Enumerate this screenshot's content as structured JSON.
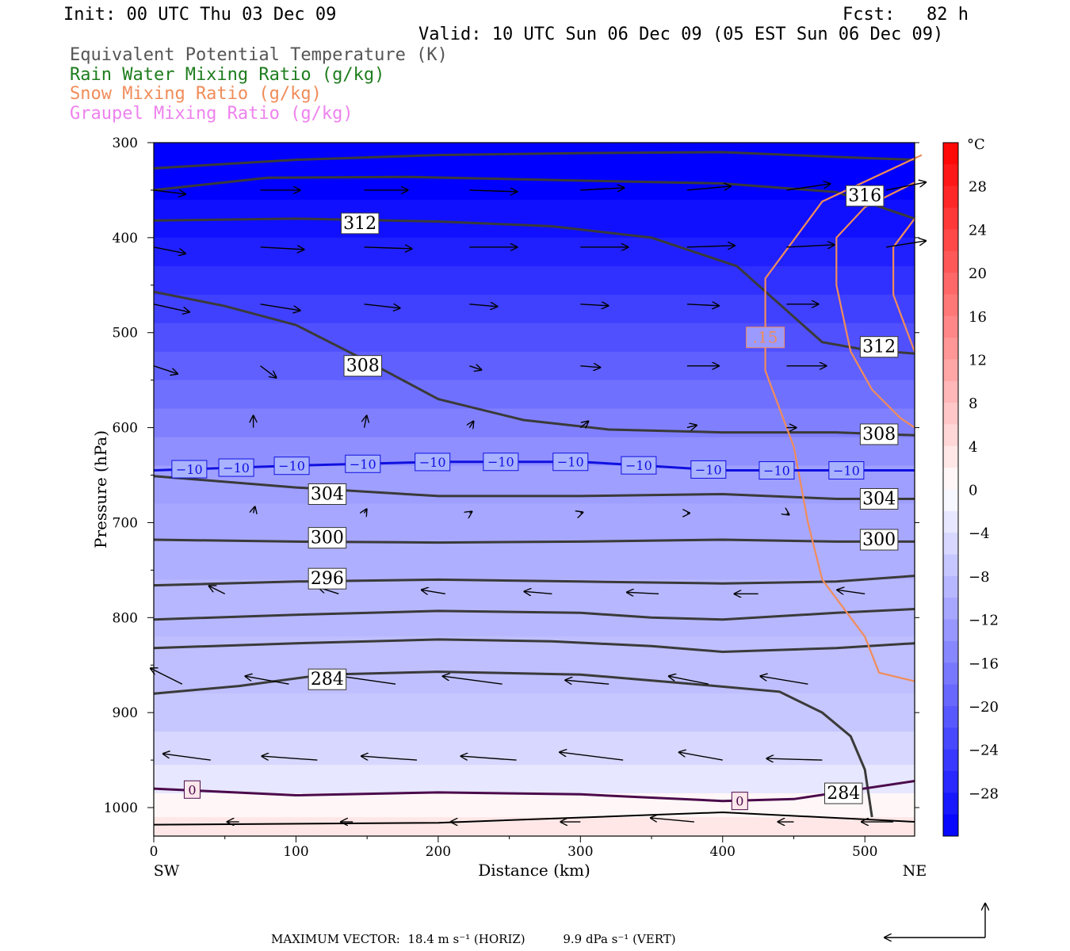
{
  "header": {
    "init": "Init: 00 UTC Thu 03 Dec 09",
    "fcst": "Fcst:   82 h",
    "valid": "Valid: 10 UTC Sun 06 Dec 09 (05 EST Sun 06 Dec 09)"
  },
  "legend": {
    "items": [
      {
        "label": "Equivalent Potential Temperature (K)",
        "color": "#555555"
      },
      {
        "label": "Rain Water Mixing Ratio (g/kg)",
        "color": "#1e7d1e"
      },
      {
        "label": "Snow Mixing Ratio (g/kg)",
        "color": "#f08c5a"
      },
      {
        "label": "Graupel Mixing Ratio (g/kg)",
        "color": "#ee82ee"
      }
    ]
  },
  "footer": {
    "max_vector": "MAXIMUM VECTOR:  18.4 m s⁻¹ (HORIZ)          9.9 dPa s⁻¹ (VERT)"
  },
  "chart_data": {
    "type": "heatmap",
    "xlabel": "Distance (km)",
    "ylabel": "Pressure (hPa)",
    "x_ticks": [
      0,
      100,
      200,
      300,
      400,
      500
    ],
    "x_range": [
      0,
      535
    ],
    "y_ticks": [
      300,
      400,
      500,
      600,
      700,
      800,
      900,
      1000
    ],
    "y_range": [
      300,
      1030
    ],
    "y_inverted": true,
    "x_end_labels": {
      "left": "SW",
      "right": "NE"
    },
    "colorbar": {
      "unit": "°C",
      "labels": [
        28,
        24,
        20,
        16,
        12,
        8,
        4,
        0,
        -4,
        -8,
        -12,
        -16,
        -20,
        -24,
        -28
      ],
      "range": [
        -32,
        32
      ],
      "colors": {
        "warm": "#ff1a1a",
        "zero": "#ffffff",
        "cold": "#0000ff"
      }
    },
    "theta_e_contours": [
      {
        "value": 316,
        "points": [
          [
            0,
            327
          ],
          [
            100,
            318
          ],
          [
            200,
            313
          ],
          [
            300,
            311
          ],
          [
            400,
            310
          ],
          [
            480,
            315
          ],
          [
            535,
            318
          ]
        ]
      },
      {
        "value": 316,
        "label_at": [
          500,
          356
        ],
        "points": [
          [
            0,
            350
          ],
          [
            80,
            337
          ],
          [
            180,
            336
          ],
          [
            300,
            340
          ],
          [
            400,
            343
          ],
          [
            480,
            352
          ],
          [
            535,
            380
          ]
        ]
      },
      {
        "value": 312,
        "label_at": [
          145,
          385
        ],
        "points": [
          [
            0,
            382
          ],
          [
            100,
            380
          ],
          [
            200,
            383
          ],
          [
            280,
            388
          ],
          [
            350,
            400
          ],
          [
            410,
            430
          ],
          [
            440,
            470
          ],
          [
            470,
            510
          ],
          [
            500,
            518
          ],
          [
            535,
            522
          ]
        ]
      },
      {
        "value": 312,
        "label_at": [
          510,
          515
        ],
        "points": []
      },
      {
        "value": 308,
        "label_at": [
          147,
          535
        ],
        "points": [
          [
            0,
            457
          ],
          [
            50,
            472
          ],
          [
            100,
            492
          ],
          [
            150,
            530
          ],
          [
            200,
            570
          ],
          [
            260,
            592
          ],
          [
            320,
            602
          ],
          [
            400,
            605
          ],
          [
            480,
            605
          ],
          [
            535,
            608
          ]
        ]
      },
      {
        "value": 304,
        "label_at": [
          122,
          670
        ],
        "points": [
          [
            0,
            651
          ],
          [
            100,
            663
          ],
          [
            200,
            672
          ],
          [
            300,
            672
          ],
          [
            400,
            670
          ],
          [
            480,
            675
          ],
          [
            535,
            675
          ]
        ]
      },
      {
        "value": 300,
        "label_at": [
          122,
          716
        ],
        "points": [
          [
            0,
            718
          ],
          [
            100,
            720
          ],
          [
            200,
            721
          ],
          [
            300,
            720
          ],
          [
            400,
            718
          ],
          [
            480,
            720
          ],
          [
            535,
            720
          ]
        ]
      },
      {
        "value": 296,
        "label_at": [
          122,
          759
        ],
        "points": [
          [
            0,
            766
          ],
          [
            100,
            762
          ],
          [
            200,
            760
          ],
          [
            300,
            762
          ],
          [
            400,
            764
          ],
          [
            480,
            762
          ],
          [
            535,
            756
          ]
        ]
      },
      {
        "value": 292,
        "points": [
          [
            0,
            802
          ],
          [
            100,
            797
          ],
          [
            200,
            793
          ],
          [
            300,
            795
          ],
          [
            350,
            800
          ],
          [
            400,
            802
          ],
          [
            480,
            795
          ],
          [
            535,
            791
          ]
        ]
      },
      {
        "value": 288,
        "points": [
          [
            0,
            832
          ],
          [
            100,
            827
          ],
          [
            200,
            823
          ],
          [
            280,
            825
          ],
          [
            350,
            830
          ],
          [
            400,
            836
          ],
          [
            480,
            832
          ],
          [
            535,
            827
          ]
        ]
      },
      {
        "value": 284,
        "label_at": [
          122,
          865
        ],
        "points": [
          [
            0,
            880
          ],
          [
            60,
            872
          ],
          [
            120,
            860
          ],
          [
            200,
            857
          ],
          [
            300,
            860
          ],
          [
            380,
            870
          ],
          [
            440,
            878
          ],
          [
            470,
            900
          ],
          [
            490,
            925
          ],
          [
            500,
            960
          ],
          [
            505,
            1010
          ]
        ]
      },
      {
        "value": 284,
        "label_at": [
          485,
          985
        ],
        "points": []
      }
    ],
    "isotherm_minus10": {
      "value": -10,
      "label": "−10",
      "points": [
        [
          0,
          645
        ],
        [
          100,
          640
        ],
        [
          200,
          636
        ],
        [
          300,
          636
        ],
        [
          400,
          645
        ],
        [
          480,
          645
        ],
        [
          535,
          645
        ]
      ]
    },
    "isotherm_zero": {
      "value": 0,
      "label": "0",
      "points": [
        [
          0,
          980
        ],
        [
          100,
          987
        ],
        [
          200,
          984
        ],
        [
          300,
          986
        ],
        [
          400,
          993
        ],
        [
          450,
          991
        ],
        [
          535,
          972
        ]
      ]
    },
    "surface_theta_e_line": {
      "points": [
        [
          0,
          1018
        ],
        [
          200,
          1016
        ],
        [
          400,
          1005
        ],
        [
          535,
          1015
        ]
      ]
    },
    "snow_contour": {
      "value": 0.15,
      "label": ".15",
      "points": [
        [
          540,
          313
        ],
        [
          470,
          362
        ],
        [
          430,
          443
        ],
        [
          430,
          540
        ],
        [
          450,
          620
        ],
        [
          460,
          700
        ],
        [
          470,
          760
        ],
        [
          500,
          820
        ],
        [
          510,
          858
        ],
        [
          535,
          867
        ]
      ]
    },
    "snow_contour_inner": {
      "points": [
        [
          535,
          342
        ],
        [
          500,
          368
        ],
        [
          480,
          400
        ],
        [
          480,
          450
        ],
        [
          490,
          520
        ],
        [
          505,
          560
        ],
        [
          525,
          590
        ],
        [
          535,
          600
        ]
      ]
    },
    "snow_contour_inner2": {
      "points": [
        [
          535,
          380
        ],
        [
          520,
          410
        ],
        [
          520,
          460
        ],
        [
          530,
          500
        ],
        [
          535,
          520
        ]
      ]
    },
    "wind_vectors": [
      {
        "p": 350,
        "x": [
          0,
          75,
          148,
          222,
          300,
          375,
          445,
          515
        ],
        "dx": [
          40,
          50,
          55,
          60,
          55,
          55,
          55,
          50
        ],
        "dy": [
          5,
          0,
          0,
          2,
          -3,
          -5,
          -8,
          -10
        ]
      },
      {
        "p": 410,
        "x": [
          0,
          75,
          148,
          222,
          300,
          375,
          445,
          515
        ],
        "dx": [
          40,
          55,
          60,
          60,
          60,
          60,
          60,
          50
        ],
        "dy": [
          8,
          3,
          2,
          0,
          0,
          -2,
          -3,
          -8
        ]
      },
      {
        "p": 470,
        "x": [
          0,
          75,
          148,
          222,
          300,
          375,
          445,
          515
        ],
        "dx": [
          45,
          50,
          45,
          35,
          35,
          40,
          40,
          0
        ],
        "dy": [
          10,
          8,
          5,
          3,
          2,
          2,
          0,
          0
        ]
      },
      {
        "p": 535,
        "x": [
          0,
          75,
          148,
          222,
          300,
          375,
          445,
          515
        ],
        "dx": [
          30,
          20,
          15,
          15,
          25,
          40,
          50,
          0
        ],
        "dy": [
          10,
          15,
          10,
          5,
          2,
          0,
          0,
          0
        ]
      },
      {
        "p": 600,
        "x": [
          70,
          148,
          222,
          300,
          375,
          445
        ],
        "dx": [
          0,
          3,
          5,
          10,
          12,
          12
        ],
        "dy": [
          -15,
          -15,
          -8,
          -8,
          -3,
          0
        ]
      },
      {
        "p": 690,
        "x": [
          70,
          148,
          222,
          300,
          375,
          445
        ],
        "dx": [
          2,
          3,
          3,
          3,
          3,
          3
        ],
        "dy": [
          -8,
          -5,
          -2,
          -1,
          0,
          2
        ]
      },
      {
        "p": 775,
        "x": [
          50,
          130,
          205,
          280,
          355,
          425,
          500
        ],
        "dx": [
          -20,
          -25,
          -30,
          -35,
          -40,
          -30,
          -35
        ],
        "dy": [
          -10,
          -8,
          -5,
          -3,
          -2,
          0,
          -5
        ]
      },
      {
        "p": 870,
        "x": [
          20,
          95,
          170,
          245,
          320,
          390,
          460
        ],
        "dx": [
          -40,
          -55,
          -70,
          -75,
          -55,
          -50,
          -60
        ],
        "dy": [
          -20,
          -10,
          -10,
          -10,
          -5,
          -10,
          -10
        ]
      },
      {
        "p": 950,
        "x": [
          40,
          115,
          185,
          255,
          330,
          400,
          470
        ],
        "dx": [
          -60,
          -70,
          -70,
          -70,
          -80,
          -55,
          -70
        ],
        "dy": [
          -8,
          -5,
          -5,
          -5,
          -10,
          -10,
          -2
        ]
      },
      {
        "p": 1015,
        "x": [
          60,
          140,
          220,
          300,
          380,
          450,
          520
        ],
        "dx": [
          -15,
          -15,
          -20,
          -25,
          -55,
          -20,
          -40
        ],
        "dy": [
          0,
          0,
          0,
          0,
          -5,
          0,
          0
        ]
      }
    ]
  }
}
